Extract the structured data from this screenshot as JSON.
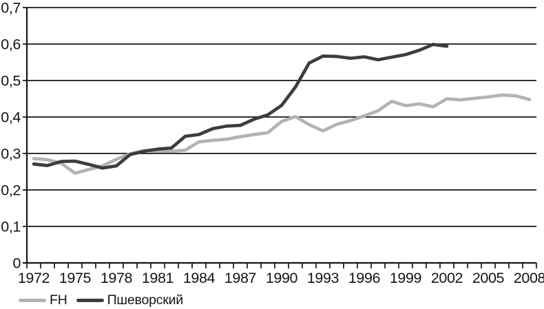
{
  "figure": {
    "background": "#ffffff",
    "axis_color": "#141414"
  },
  "chart_data": {
    "type": "line",
    "title": "",
    "xlabel": "",
    "ylabel": "",
    "x": [
      1972,
      1973,
      1974,
      1975,
      1976,
      1977,
      1978,
      1979,
      1980,
      1981,
      1982,
      1983,
      1984,
      1985,
      1986,
      1987,
      1988,
      1989,
      1990,
      1991,
      1992,
      1993,
      1994,
      1995,
      1996,
      1997,
      1998,
      1999,
      2000,
      2001,
      2002,
      2003,
      2004,
      2005,
      2006,
      2007,
      2008
    ],
    "series": [
      {
        "name": "FH",
        "color": "#b3b3b3",
        "values": [
          0.286,
          0.283,
          0.273,
          0.246,
          0.256,
          0.266,
          0.284,
          0.299,
          0.308,
          0.306,
          0.306,
          0.309,
          0.332,
          0.336,
          0.339,
          0.346,
          0.352,
          0.357,
          0.388,
          0.401,
          0.379,
          0.362,
          0.38,
          0.39,
          0.403,
          0.417,
          0.443,
          0.431,
          0.436,
          0.428,
          0.45,
          0.447,
          0.451,
          0.455,
          0.46,
          0.458,
          0.448
        ]
      },
      {
        "name": "Пшеворский",
        "color": "#3d3d3d",
        "values": [
          0.271,
          0.267,
          0.278,
          0.279,
          0.27,
          0.26,
          0.266,
          0.297,
          0.306,
          0.312,
          0.315,
          0.347,
          0.352,
          0.368,
          0.375,
          0.377,
          0.394,
          0.406,
          0.432,
          0.482,
          0.548,
          0.567,
          0.566,
          0.561,
          0.565,
          0.557,
          0.564,
          0.571,
          0.583,
          0.599,
          0.594
        ]
      }
    ],
    "xlim": [
      1972,
      2008
    ],
    "ylim": [
      0,
      0.7
    ],
    "yticks": [
      0,
      0.1,
      0.2,
      0.3,
      0.4,
      0.5,
      0.6,
      0.7
    ],
    "ytick_labels": [
      "0",
      "0,1",
      "0,2",
      "0,3",
      "0,4",
      "0,5",
      "0,6",
      "0,7"
    ],
    "xticks_labeled": [
      1972,
      1975,
      1978,
      1981,
      1984,
      1987,
      1990,
      1993,
      1996,
      1999,
      2002,
      2005,
      2008
    ],
    "xticks_minor_every": 1,
    "grid": "horizontal",
    "legend_position": "bottom-left",
    "decimal_separator": ","
  },
  "legend": {
    "items": [
      {
        "label": "FH"
      },
      {
        "label": "Пшеворский"
      }
    ]
  }
}
